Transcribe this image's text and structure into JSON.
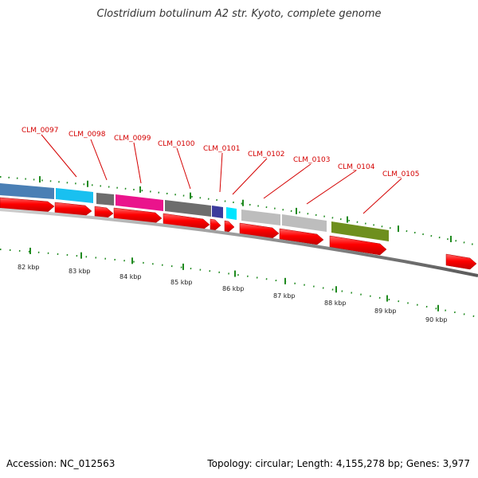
{
  "title": "Clostridium botulinum A2 str. Kyoto, complete genome",
  "footer": {
    "accession": "Accession: NC_012563",
    "summary": "Topology: circular; Length: 4,155,278 bp; Genes: 3,977"
  },
  "colors": {
    "cds_red": "#ff0000",
    "tick_green": "#1f8a1f",
    "label_red": "#d40000",
    "backbone_gray": "#8a8a8a"
  },
  "gene_labels": [
    "CLM_0097",
    "CLM_0098",
    "CLM_0099",
    "CLM_0100",
    "CLM_0101",
    "CLM_0102",
    "CLM_0103",
    "CLM_0104",
    "CLM_0105"
  ],
  "kbp_labels": [
    "82 kbp",
    "83 kbp",
    "84 kbp",
    "85 kbp",
    "86 kbp",
    "87 kbp",
    "88 kbp",
    "89 kbp",
    "90 kbp"
  ],
  "cog_band_colors": [
    "#4a7fb5",
    "#19c0f0",
    "#6d6d6d",
    "#ea148c",
    "#6d6d6d",
    "#3b3b9c",
    "#00e5ff",
    "#bdbdbd",
    "#bdbdbd",
    "#6e8f1e"
  ]
}
